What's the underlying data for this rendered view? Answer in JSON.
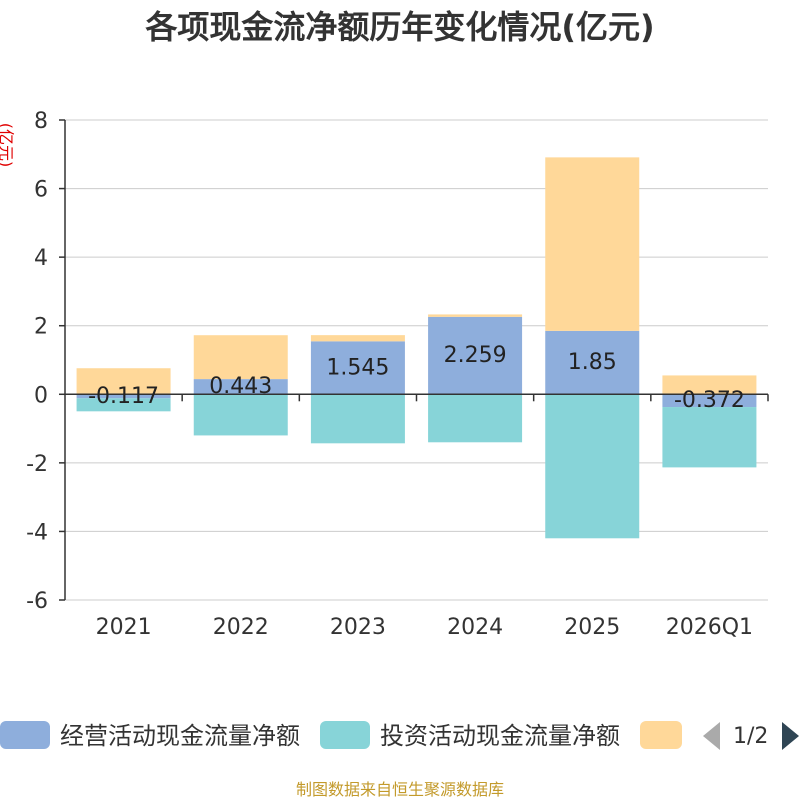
{
  "chart_data": {
    "type": "bar",
    "stacked": true,
    "title": "各项现金流净额历年变化情况(亿元)",
    "ylabel": "(亿元)",
    "xlabel": "",
    "ylim": [
      -6,
      8
    ],
    "yticks": [
      8,
      6,
      4,
      2,
      0,
      -2,
      -4,
      -6
    ],
    "categories": [
      "2021",
      "2022",
      "2023",
      "2024",
      "2025",
      "2026Q1"
    ],
    "series": [
      {
        "name": "经营活动现金流量净额",
        "color": "#8eaedc",
        "values": [
          -0.117,
          0.443,
          1.545,
          2.259,
          1.85,
          -0.372
        ],
        "labels": [
          "-0.117",
          "0.443",
          "1.545",
          "2.259",
          "1.85",
          "-0.372"
        ]
      },
      {
        "name": "投资活动现金流量净额",
        "color": "#87d4d8",
        "values": [
          -0.38,
          -1.2,
          -1.43,
          -1.4,
          -4.2,
          -1.76
        ]
      },
      {
        "name": "",
        "color": "#ffd899",
        "values": [
          0.76,
          1.28,
          0.18,
          0.07,
          5.06,
          0.55
        ]
      }
    ],
    "legend": {
      "page": "1/2"
    }
  },
  "footer": "制图数据来自恒生聚源数据库"
}
